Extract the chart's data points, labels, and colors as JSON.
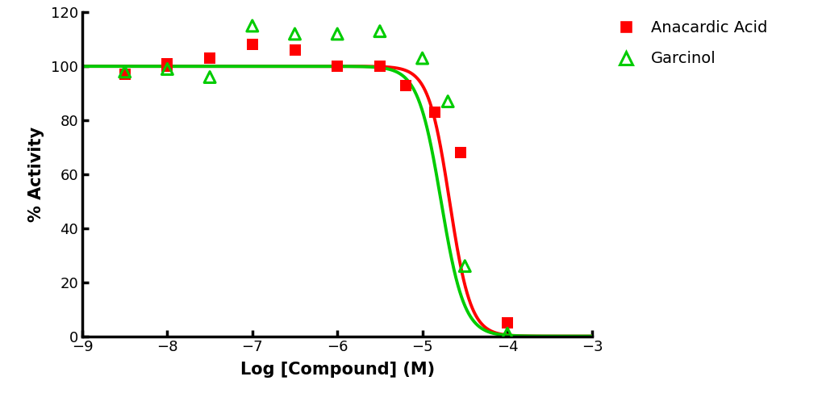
{
  "anacardic_x": [
    -8.5,
    -8.0,
    -8.0,
    -7.5,
    -7.0,
    -6.5,
    -6.0,
    -5.5,
    -5.2,
    -4.85,
    -4.55,
    -4.0
  ],
  "anacardic_y": [
    97,
    100,
    101,
    103,
    108,
    106,
    100,
    100,
    93,
    83,
    68,
    5
  ],
  "garcinol_x": [
    -8.5,
    -8.0,
    -7.5,
    -7.0,
    -6.5,
    -6.0,
    -5.5,
    -5.0,
    -4.7,
    -4.5,
    -4.0
  ],
  "garcinol_y": [
    98,
    99,
    96,
    115,
    112,
    112,
    113,
    103,
    87,
    26,
    1
  ],
  "anacardic_ic50_log": -4.68,
  "anacardic_hill": 3.5,
  "garcinol_ic50_log": -4.78,
  "garcinol_hill": 3.2,
  "anacardic_color": "#FF0000",
  "garcinol_color": "#00CC00",
  "xlabel": "Log [Compound] (M)",
  "ylabel": "% Activity",
  "xlim": [
    -9,
    -3
  ],
  "ylim": [
    0,
    120
  ],
  "yticks": [
    0,
    20,
    40,
    60,
    80,
    100,
    120
  ],
  "xticks": [
    -9,
    -8,
    -7,
    -6,
    -5,
    -4,
    -3
  ],
  "legend_anacardic": "Anacardic Acid",
  "legend_garcinol": "Garcinol",
  "figsize": [
    10.2,
    5.08
  ],
  "dpi": 100,
  "spine_linewidth": 2.5,
  "curve_linewidth": 2.8,
  "marker_size_square": 90,
  "marker_size_triangle": 100,
  "tick_labelsize": 13,
  "axis_labelsize": 15
}
